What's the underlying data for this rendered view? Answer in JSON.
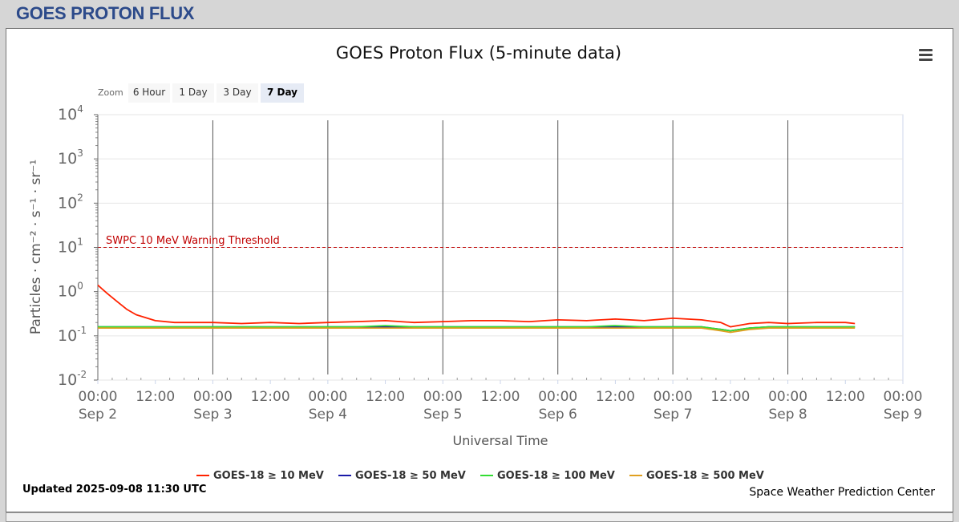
{
  "page": {
    "title": "GOES PROTON FLUX"
  },
  "toolbar": {
    "zoom_label": "Zoom",
    "zoom_buttons": [
      "6 Hour",
      "1 Day",
      "3 Day",
      "7 Day"
    ],
    "zoom_selected": "7 Day",
    "menu_icon": "hamburger-menu-icon"
  },
  "footer": {
    "updated": "Updated 2025-09-08 11:30 UTC",
    "credit": "Space Weather Prediction Center"
  },
  "chart_data": {
    "type": "line",
    "title": "GOES Proton Flux (5-minute data)",
    "xlabel": "Universal Time",
    "ylabel": "Particles · cm⁻² · s⁻¹ · sr⁻¹",
    "yscale": "log",
    "ylim": [
      0.01,
      10000
    ],
    "yticks": [
      {
        "value": 0.01,
        "base": "10",
        "exp": "-2"
      },
      {
        "value": 0.1,
        "base": "10",
        "exp": "-1"
      },
      {
        "value": 1,
        "base": "10",
        "exp": "0"
      },
      {
        "value": 10,
        "base": "10",
        "exp": "1"
      },
      {
        "value": 100,
        "base": "10",
        "exp": "2"
      },
      {
        "value": 1000,
        "base": "10",
        "exp": "3"
      },
      {
        "value": 10000,
        "base": "10",
        "exp": "4"
      }
    ],
    "xlim": [
      "2025-09-02 00:00",
      "2025-09-09 00:00"
    ],
    "xticks": [
      {
        "time": "00:00",
        "date": "Sep 2",
        "hours": 0
      },
      {
        "time": "12:00",
        "date": "",
        "hours": 12
      },
      {
        "time": "00:00",
        "date": "Sep 3",
        "hours": 24
      },
      {
        "time": "12:00",
        "date": "",
        "hours": 36
      },
      {
        "time": "00:00",
        "date": "Sep 4",
        "hours": 48
      },
      {
        "time": "12:00",
        "date": "",
        "hours": 60
      },
      {
        "time": "00:00",
        "date": "Sep 5",
        "hours": 72
      },
      {
        "time": "12:00",
        "date": "",
        "hours": 84
      },
      {
        "time": "00:00",
        "date": "Sep 6",
        "hours": 96
      },
      {
        "time": "12:00",
        "date": "",
        "hours": 108
      },
      {
        "time": "00:00",
        "date": "Sep 7",
        "hours": 120
      },
      {
        "time": "12:00",
        "date": "",
        "hours": 132
      },
      {
        "time": "00:00",
        "date": "Sep 8",
        "hours": 144
      },
      {
        "time": "12:00",
        "date": "",
        "hours": 156
      },
      {
        "time": "00:00",
        "date": "Sep 9",
        "hours": 168
      }
    ],
    "threshold": {
      "label": "SWPC 10 MeV Warning Threshold",
      "value": 10,
      "color": "#c00000"
    },
    "grid": true,
    "legend_position": "bottom",
    "x_hours": [
      0,
      2,
      4,
      6,
      8,
      12,
      16,
      20,
      24,
      30,
      36,
      42,
      48,
      54,
      60,
      66,
      72,
      78,
      84,
      90,
      96,
      102,
      108,
      114,
      120,
      126,
      130,
      132,
      136,
      140,
      144,
      150,
      156,
      158
    ],
    "series": [
      {
        "name": "GOES-18 ≥ 10 MeV",
        "color": "#ff2200",
        "values": [
          1.4,
          0.9,
          0.6,
          0.4,
          0.3,
          0.22,
          0.2,
          0.2,
          0.2,
          0.19,
          0.2,
          0.19,
          0.2,
          0.21,
          0.22,
          0.2,
          0.21,
          0.22,
          0.22,
          0.21,
          0.23,
          0.22,
          0.24,
          0.22,
          0.25,
          0.23,
          0.2,
          0.16,
          0.19,
          0.2,
          0.19,
          0.2,
          0.2,
          0.19
        ]
      },
      {
        "name": "GOES-18 ≥ 50 MeV",
        "color": "#1a1aa8",
        "values": [
          0.16,
          0.16,
          0.16,
          0.16,
          0.16,
          0.16,
          0.16,
          0.16,
          0.16,
          0.16,
          0.16,
          0.16,
          0.16,
          0.16,
          0.16,
          0.16,
          0.16,
          0.16,
          0.16,
          0.16,
          0.16,
          0.16,
          0.16,
          0.16,
          0.16,
          0.16,
          0.14,
          0.13,
          0.15,
          0.16,
          0.16,
          0.16,
          0.16,
          0.16
        ]
      },
      {
        "name": "GOES-18 ≥ 100 MeV",
        "color": "#33dd33",
        "values": [
          0.16,
          0.16,
          0.16,
          0.16,
          0.16,
          0.16,
          0.16,
          0.16,
          0.16,
          0.16,
          0.16,
          0.16,
          0.16,
          0.16,
          0.17,
          0.16,
          0.16,
          0.16,
          0.16,
          0.16,
          0.16,
          0.16,
          0.17,
          0.16,
          0.16,
          0.16,
          0.14,
          0.13,
          0.15,
          0.16,
          0.16,
          0.16,
          0.16,
          0.16
        ]
      },
      {
        "name": "GOES-18 ≥ 500 MeV",
        "color": "#e0a020",
        "values": [
          0.15,
          0.15,
          0.15,
          0.15,
          0.15,
          0.15,
          0.15,
          0.15,
          0.15,
          0.15,
          0.15,
          0.15,
          0.15,
          0.15,
          0.15,
          0.15,
          0.15,
          0.15,
          0.15,
          0.15,
          0.15,
          0.15,
          0.15,
          0.15,
          0.15,
          0.15,
          0.13,
          0.12,
          0.14,
          0.15,
          0.15,
          0.15,
          0.15,
          0.15
        ]
      }
    ]
  }
}
